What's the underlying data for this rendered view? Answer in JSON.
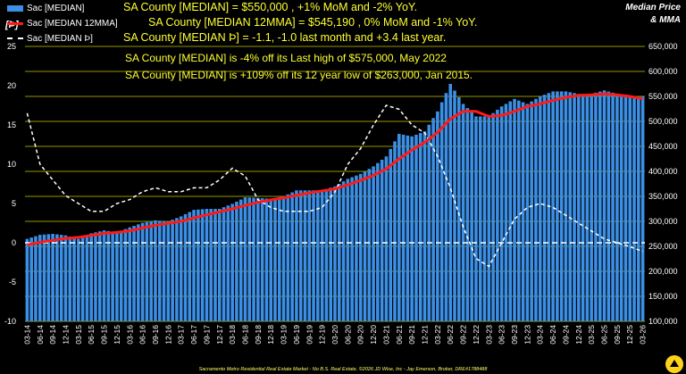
{
  "header": {
    "title_line1": "Median Price",
    "title_line2": "& MMA",
    "left_unit": "[Þ]"
  },
  "legend": [
    {
      "label": "Sac [MEDIAN]",
      "color": "#3b8fe6",
      "style": "bar"
    },
    {
      "label": "Sac [MEDIAN 12MMA]",
      "color": "#ff1a1a",
      "style": "line"
    },
    {
      "label": "Sac [MEDIAN Þ]",
      "color": "#ffffff",
      "style": "dash"
    }
  ],
  "annotations": {
    "median": "SA County [MEDIAN] = $550,000 , +1% MoM and -2% YoY.",
    "mma": "SA County [MEDIAN 12MMA] = $545,190 , 0% MoM and -1% YoY.",
    "momentum": "SA County [MEDIAN Þ] = -1.1, -1.0 last month and +3.4 last year.",
    "high": "SA County [MEDIAN] is -4% off its Last high of $575,000, May 2022",
    "low": "SA County [MEDIAN] is +109% off its 12 year low of $263,000, Jan 2015."
  },
  "footer": "Sacramento Metro Residential Real Estate Market - No B.S. Real Estate, ©2026 JD Wise, Inc - Jay Emerson, Broker, DRE#1788488",
  "colors": {
    "background": "#000000",
    "bars": "#3b8fe6",
    "mma": "#ff1a1a",
    "momentum": "#ffffff",
    "text": "#ffff33",
    "grid": "#c8c800"
  },
  "chart_data": {
    "type": "bar",
    "x_start": "2014-03",
    "left_axis": {
      "ticks": [
        "25",
        "20",
        "15",
        "10",
        "5",
        "0",
        "-5",
        "-10"
      ],
      "range": [
        -10,
        25
      ]
    },
    "right_axis": {
      "ticks": [
        "650,000",
        "600,000",
        "550,000",
        "500,000",
        "450,000",
        "400,000",
        "350,000",
        "300,000",
        "250,000",
        "200,000",
        "150,000",
        "100,000"
      ],
      "range": [
        100000,
        650000
      ]
    },
    "x_ticks": [
      "03-14",
      "06-14",
      "09-14",
      "12-14",
      "03-15",
      "06-15",
      "09-15",
      "12-15",
      "03-16",
      "06-16",
      "09-16",
      "12-16",
      "03-17",
      "06-17",
      "09-17",
      "12-17",
      "03-18",
      "06-18",
      "09-18",
      "12-18",
      "03-19",
      "06-19",
      "09-19",
      "12-19",
      "03-20",
      "06-20",
      "09-20",
      "12-20",
      "03-21",
      "06-21",
      "09-21",
      "12-21",
      "03-22",
      "06-22",
      "09-22",
      "12-22",
      "03-23",
      "06-23",
      "09-23",
      "12-23",
      "03-24",
      "06-24",
      "09-24",
      "12-24",
      "03-25",
      "06-25",
      "09-25",
      "12-25",
      "03-26"
    ],
    "series": [
      {
        "name": "Sac [MEDIAN]",
        "axis": "right",
        "quarterly_values": [
          265000,
          273000,
          275000,
          272000,
          265000,
          276000,
          282000,
          278000,
          288000,
          297000,
          302000,
          300000,
          310000,
          323000,
          325000,
          325000,
          335000,
          348000,
          347000,
          345000,
          350000,
          362000,
          362000,
          362000,
          370000,
          385000,
          395000,
          410000,
          430000,
          475000,
          470000,
          480000,
          520000,
          575000,
          535000,
          510000,
          510000,
          530000,
          545000,
          535000,
          550000,
          560000,
          560000,
          555000,
          555000,
          562000,
          555000,
          548000,
          550000
        ]
      },
      {
        "name": "Sac [MEDIAN 12MMA]",
        "axis": "right",
        "quarterly_values": [
          253000,
          258000,
          262000,
          266000,
          268000,
          272000,
          276000,
          278000,
          281000,
          287000,
          292000,
          296000,
          300000,
          307000,
          313000,
          319000,
          325000,
          332000,
          338000,
          343000,
          347000,
          352000,
          357000,
          361000,
          365000,
          373000,
          382000,
          392000,
          405000,
          425000,
          443000,
          458000,
          478000,
          505000,
          520000,
          520000,
          510000,
          512000,
          520000,
          530000,
          535000,
          542000,
          548000,
          552000,
          553000,
          555000,
          553000,
          550000,
          545190
        ]
      },
      {
        "name": "Sac [MEDIAN Þ]",
        "axis": "left",
        "quarterly_values": [
          16.5,
          10,
          8,
          6,
          5,
          4,
          4,
          5,
          5.5,
          6.5,
          7,
          6.5,
          6.5,
          7,
          7,
          8,
          9.5,
          8.5,
          5.5,
          4.5,
          4,
          4,
          4,
          4.5,
          6.5,
          10,
          12,
          15,
          17.5,
          17,
          15,
          14,
          11,
          7,
          2,
          -2,
          -3,
          0,
          3,
          4.5,
          5,
          4.5,
          3.5,
          2.5,
          1.5,
          0.5,
          0,
          -0.5,
          -1.1
        ]
      }
    ]
  }
}
